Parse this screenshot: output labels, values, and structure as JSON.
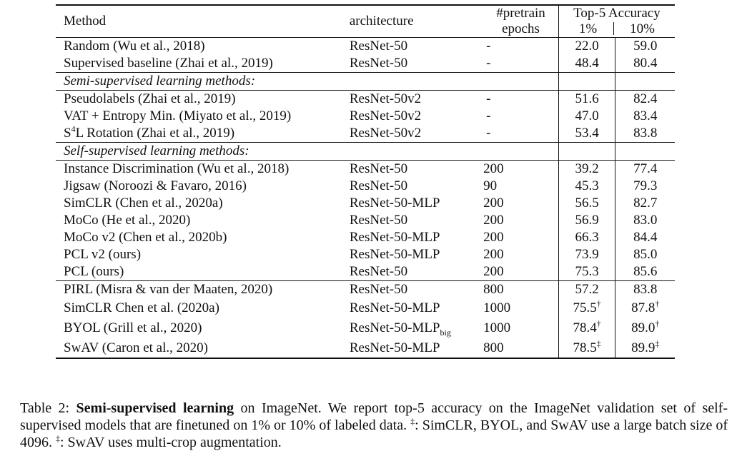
{
  "table": {
    "headers": {
      "method": "Method",
      "architecture": "architecture",
      "pretrain_line1": "#pretrain",
      "pretrain_line2": "epochs",
      "accuracy": "Top-5 Accuracy",
      "pct1": "1%",
      "pct10": "10%"
    },
    "baseline_rows": [
      {
        "method": "Random (Wu et al., 2018)",
        "arch": "ResNet-50",
        "epochs": "-",
        "acc1": "22.0",
        "acc10": "59.0"
      },
      {
        "method": "Supervised baseline (Zhai et al., 2019)",
        "arch": "ResNet-50",
        "epochs": "-",
        "acc1": "48.4",
        "acc10": "80.4"
      }
    ],
    "semi_section": "Semi-supervised learning methods:",
    "semi_rows": [
      {
        "method": "Pseudolabels (Zhai et al., 2019)",
        "arch": "ResNet-50v2",
        "epochs": "-",
        "acc1": "51.6",
        "acc10": "82.4"
      },
      {
        "method": "VAT + Entropy Min. (Miyato et al., 2019)",
        "arch": "ResNet-50v2",
        "epochs": "-",
        "acc1": "47.0",
        "acc10": "83.4"
      },
      {
        "method_prefix": "S",
        "method_sup": "4",
        "method_rest": "L Rotation (Zhai et al., 2019)",
        "arch": "ResNet-50v2",
        "epochs": "-",
        "acc1": "53.4",
        "acc10": "83.8"
      }
    ],
    "self_section": "Self-supervised learning methods:",
    "self_rows": [
      {
        "method": "Instance Discrimination (Wu et al., 2018)",
        "arch": "ResNet-50",
        "epochs": "200",
        "acc1": "39.2",
        "acc10": "77.4"
      },
      {
        "method": "Jigsaw (Noroozi & Favaro, 2016)",
        "arch": "ResNet-50",
        "epochs": "90",
        "acc1": "45.3",
        "acc10": "79.3"
      },
      {
        "method": "SimCLR (Chen et al., 2020a)",
        "arch": "ResNet-50-MLP",
        "epochs": "200",
        "acc1": "56.5",
        "acc10": "82.7"
      },
      {
        "method": "MoCo (He et al., 2020)",
        "arch": "ResNet-50",
        "epochs": "200",
        "acc1": "56.9",
        "acc10": "83.0"
      },
      {
        "method": "MoCo v2 (Chen et al., 2020b)",
        "arch": "ResNet-50-MLP",
        "epochs": "200",
        "acc1": "66.3",
        "acc10": "84.4"
      },
      {
        "method": "PCL v2 (ours)",
        "arch": "ResNet-50-MLP",
        "epochs": "200",
        "acc1": "73.9",
        "acc10": "85.0"
      },
      {
        "method": "PCL (ours)",
        "arch": "ResNet-50",
        "epochs": "200",
        "acc1": "75.3",
        "acc10": "85.6"
      }
    ],
    "large_rows": [
      {
        "method": "PIRL (Misra & van der Maaten, 2020)",
        "arch": "ResNet-50",
        "epochs": "800",
        "acc1": "57.2",
        "acc10": "83.8"
      },
      {
        "method": "SimCLR Chen et al. (2020a)",
        "arch": "ResNet-50-MLP",
        "epochs": "1000",
        "acc1": "75.5",
        "acc1_mark": "†",
        "acc10": "87.8",
        "acc10_mark": "†"
      },
      {
        "method": "BYOL (Grill et al., 2020)",
        "arch": "ResNet-50-MLP",
        "arch_sub": "big",
        "epochs": "1000",
        "acc1": "78.4",
        "acc1_mark": "†",
        "acc10": "89.0",
        "acc10_mark": "†"
      },
      {
        "method": "SwAV (Caron et al., 2020)",
        "arch": "ResNet-50-MLP",
        "epochs": "800",
        "acc1": "78.5",
        "acc1_mark": "‡",
        "acc10": "89.9",
        "acc10_mark": "‡"
      }
    ]
  },
  "caption": {
    "label": "Table 2: ",
    "bold": "Semi-supervised learning",
    "text1": " on ImageNet. We report top-5 accuracy on the ImageNet validation set of self-supervised models that are finetuned on 1% or 10% of labeled data. ",
    "mark1": "‡",
    "text2": ": SimCLR, BYOL, and SwAV use a large batch size of 4096. ",
    "mark2": "‡",
    "text3": ": SwAV uses multi-crop augmentation."
  }
}
